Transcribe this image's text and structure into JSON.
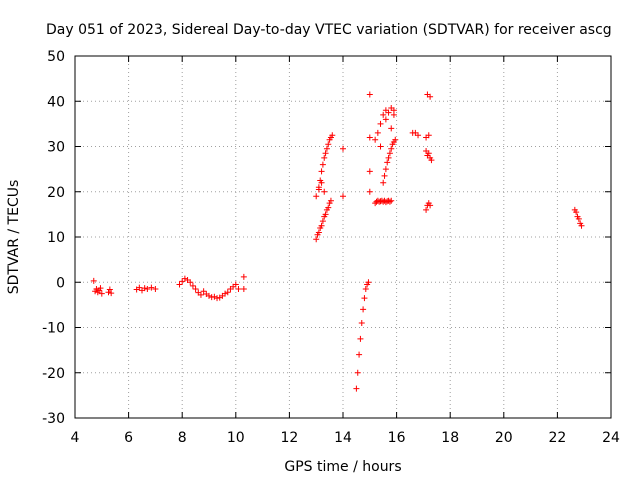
{
  "chart_data": {
    "type": "scatter",
    "title": "Day 051 of 2023, Sidereal Day-to-day VTEC variation (SDTVAR) for receiver ascg",
    "xlabel": "GPS time / hours",
    "ylabel": "SDTVAR / TECUs",
    "xlim": [
      4,
      24
    ],
    "ylim": [
      -30,
      50
    ],
    "xticks": [
      4,
      6,
      8,
      10,
      12,
      14,
      16,
      18,
      20,
      22,
      24
    ],
    "xtick_labels": [
      "4",
      "6",
      "8",
      "10",
      "12",
      "14",
      "16",
      "18",
      "20",
      "22",
      "24"
    ],
    "yticks": [
      -30,
      -20,
      -10,
      0,
      10,
      20,
      30,
      40,
      50
    ],
    "ytick_labels": [
      "-30",
      "-20",
      "-10",
      "0",
      "10",
      "20",
      "30",
      "40",
      "50"
    ],
    "grid": true,
    "marker": "+",
    "color": "#ff0000",
    "series": [
      {
        "name": "SDTVAR",
        "x": [
          4.7,
          4.75,
          4.8,
          4.85,
          4.9,
          4.95,
          5.0,
          5.25,
          5.3,
          5.35,
          6.3,
          6.4,
          6.5,
          6.6,
          6.7,
          6.85,
          7.0,
          7.9,
          8.0,
          8.1,
          8.2,
          8.3,
          8.4,
          8.5,
          8.6,
          8.7,
          8.8,
          8.9,
          9.0,
          9.1,
          9.2,
          9.3,
          9.4,
          9.5,
          9.6,
          9.7,
          9.8,
          9.9,
          10.0,
          10.1,
          10.3,
          10.3,
          13.0,
          13.05,
          13.1,
          13.15,
          13.2,
          13.25,
          13.3,
          13.35,
          13.4,
          13.45,
          13.5,
          13.55,
          13.1,
          13.15,
          13.2,
          13.25,
          13.3,
          13.35,
          13.4,
          13.45,
          13.5,
          13.55,
          13.6,
          13.0,
          13.1,
          13.2,
          13.3,
          14.0,
          14.0,
          14.5,
          14.55,
          14.6,
          14.65,
          14.7,
          14.75,
          14.8,
          14.85,
          14.9,
          14.95,
          15.0,
          15.0,
          15.0,
          15.0,
          15.2,
          15.25,
          15.3,
          15.35,
          15.4,
          15.45,
          15.5,
          15.55,
          15.6,
          15.65,
          15.7,
          15.75,
          15.8,
          15.3,
          15.4,
          15.5,
          15.6,
          15.7,
          15.8,
          15.9,
          15.5,
          15.55,
          15.6,
          15.65,
          15.7,
          15.75,
          15.8,
          15.85,
          15.9,
          15.95,
          15.2,
          15.4,
          15.6,
          15.8,
          15.9,
          16.6,
          16.7,
          16.8,
          17.1,
          17.15,
          17.2,
          17.25,
          17.1,
          17.15,
          17.2,
          17.25,
          17.3,
          17.1,
          17.2,
          17.15,
          17.25,
          22.65,
          22.7,
          22.75,
          22.8,
          22.85,
          22.9
        ],
        "y": [
          0.3,
          -2.0,
          -1.5,
          -2.2,
          -1.8,
          -1.3,
          -2.5,
          -2.2,
          -1.6,
          -2.4,
          -1.6,
          -1.2,
          -1.8,
          -1.3,
          -1.5,
          -1.2,
          -1.5,
          -0.5,
          0.2,
          0.8,
          0.5,
          0.0,
          -0.8,
          -1.5,
          -2.3,
          -2.8,
          -2.0,
          -2.6,
          -3.0,
          -3.3,
          -3.2,
          -3.5,
          -3.4,
          -3.0,
          -2.5,
          -2.2,
          -1.5,
          -1.0,
          -0.5,
          -1.5,
          1.2,
          -1.5,
          9.5,
          10.5,
          11.0,
          12.0,
          12.5,
          13.5,
          14.5,
          15.0,
          16.0,
          16.5,
          17.5,
          18.0,
          21.0,
          22.5,
          24.5,
          26.0,
          27.5,
          28.5,
          29.5,
          30.5,
          31.5,
          32.0,
          32.5,
          19.0,
          20.5,
          22.0,
          20.0,
          19.0,
          29.5,
          -23.5,
          -20.0,
          -16.0,
          -12.5,
          -9.0,
          -6.0,
          -3.5,
          -1.5,
          -0.5,
          0.0,
          41.5,
          24.5,
          20.0,
          32.0,
          17.5,
          17.8,
          18.0,
          17.8,
          17.9,
          18.0,
          17.8,
          18.0,
          17.7,
          17.9,
          18.0,
          17.8,
          18.0,
          33.0,
          35.0,
          37.0,
          38.0,
          37.5,
          38.5,
          38.0,
          22.0,
          23.5,
          25.0,
          26.5,
          27.5,
          28.5,
          29.5,
          30.5,
          31.0,
          31.5,
          31.5,
          30.0,
          36.0,
          34.0,
          37.0,
          33.0,
          33.0,
          32.5,
          16.0,
          17.0,
          17.5,
          17.0,
          29.0,
          28.0,
          28.5,
          27.5,
          27.0,
          32.0,
          32.5,
          41.5,
          41.0,
          16.0,
          15.5,
          14.5,
          14.0,
          13.0,
          12.5
        ]
      }
    ]
  }
}
